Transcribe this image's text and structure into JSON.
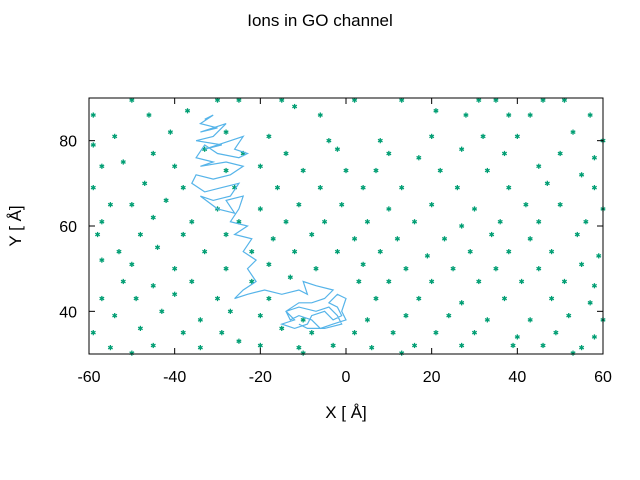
{
  "chart_data": {
    "type": "scatter",
    "title": "Ions in GO channel",
    "xlabel": "X [ Å]",
    "ylabel": "Y [ Å]",
    "xlim": [
      -60,
      60
    ],
    "ylim": [
      30,
      90
    ],
    "xticks": [
      -60,
      -40,
      -20,
      0,
      20,
      40,
      60
    ],
    "yticks": [
      40,
      60,
      80
    ],
    "grid": false,
    "colors": {
      "points": "#009e73",
      "trajectory": "#56b4e9",
      "axes": "#000000"
    },
    "series": [
      {
        "type": "scatter",
        "points": [
          [
            -50,
            89.5
          ],
          [
            -30,
            89.5
          ],
          [
            -25,
            89.5
          ],
          [
            -15,
            89.5
          ],
          [
            2,
            89.5
          ],
          [
            13,
            89.5
          ],
          [
            31,
            89.5
          ],
          [
            35,
            89.5
          ],
          [
            46,
            89.5
          ],
          [
            51,
            89.5
          ],
          [
            -59,
            86
          ],
          [
            -46,
            86
          ],
          [
            -37,
            87
          ],
          [
            -12,
            88
          ],
          [
            -6,
            86
          ],
          [
            21,
            87
          ],
          [
            28,
            86
          ],
          [
            38,
            86
          ],
          [
            43,
            86
          ],
          [
            57,
            86
          ],
          [
            -54,
            81
          ],
          [
            -41,
            82
          ],
          [
            -28,
            82
          ],
          [
            -18,
            81
          ],
          [
            -4,
            80
          ],
          [
            8,
            80
          ],
          [
            20,
            81
          ],
          [
            32,
            81
          ],
          [
            40,
            81
          ],
          [
            53,
            82
          ],
          [
            60,
            80
          ],
          [
            -59,
            79
          ],
          [
            -45,
            77
          ],
          [
            -33,
            78
          ],
          [
            -24,
            77
          ],
          [
            -14,
            77
          ],
          [
            -2,
            78
          ],
          [
            10,
            77
          ],
          [
            17,
            76
          ],
          [
            27,
            78
          ],
          [
            37,
            77
          ],
          [
            50,
            77
          ],
          [
            58,
            76
          ],
          [
            -57,
            74
          ],
          [
            -52,
            75
          ],
          [
            -40,
            74
          ],
          [
            -28,
            73
          ],
          [
            -20,
            74
          ],
          [
            -10,
            73
          ],
          [
            0,
            73
          ],
          [
            7,
            73
          ],
          [
            22,
            73
          ],
          [
            33,
            73
          ],
          [
            45,
            74
          ],
          [
            55,
            72
          ],
          [
            -59,
            69
          ],
          [
            -47,
            70
          ],
          [
            -38,
            69
          ],
          [
            -26,
            69
          ],
          [
            -16,
            69
          ],
          [
            -6,
            69
          ],
          [
            4,
            69
          ],
          [
            13,
            69
          ],
          [
            26,
            69
          ],
          [
            38,
            69
          ],
          [
            47,
            70
          ],
          [
            58,
            69
          ],
          [
            -55,
            65
          ],
          [
            -50,
            65
          ],
          [
            -42,
            66
          ],
          [
            -30,
            64
          ],
          [
            -20,
            64
          ],
          [
            -11,
            65
          ],
          [
            -1,
            65
          ],
          [
            10,
            64
          ],
          [
            20,
            65
          ],
          [
            30,
            64
          ],
          [
            42,
            65
          ],
          [
            50,
            65
          ],
          [
            60,
            64
          ],
          [
            -57,
            61
          ],
          [
            -45,
            62
          ],
          [
            -36,
            61
          ],
          [
            -25,
            61
          ],
          [
            -14,
            61
          ],
          [
            -5,
            61
          ],
          [
            5,
            61
          ],
          [
            16,
            61
          ],
          [
            27,
            60
          ],
          [
            36,
            61
          ],
          [
            45,
            61
          ],
          [
            56,
            61
          ],
          [
            -58,
            58
          ],
          [
            -48,
            58
          ],
          [
            -38,
            58
          ],
          [
            -28,
            58
          ],
          [
            -17,
            57
          ],
          [
            -8,
            58
          ],
          [
            2,
            57
          ],
          [
            12,
            57
          ],
          [
            23,
            57
          ],
          [
            34,
            58
          ],
          [
            43,
            57
          ],
          [
            54,
            58
          ],
          [
            -53,
            54
          ],
          [
            -44,
            55
          ],
          [
            -33,
            54
          ],
          [
            -22,
            54
          ],
          [
            -12,
            54
          ],
          [
            -2,
            54
          ],
          [
            8,
            54
          ],
          [
            19,
            53
          ],
          [
            29,
            54
          ],
          [
            38,
            54
          ],
          [
            48,
            54
          ],
          [
            59,
            53
          ],
          [
            -57,
            52
          ],
          [
            -50,
            51
          ],
          [
            -40,
            50
          ],
          [
            -28,
            50
          ],
          [
            -18,
            51
          ],
          [
            -7,
            50
          ],
          [
            4,
            51
          ],
          [
            14,
            50
          ],
          [
            25,
            50
          ],
          [
            35,
            50
          ],
          [
            45,
            50
          ],
          [
            55,
            51
          ],
          [
            -52,
            47
          ],
          [
            -45,
            46
          ],
          [
            -36,
            47
          ],
          [
            -22,
            47
          ],
          [
            -13,
            48
          ],
          [
            3,
            47
          ],
          [
            10,
            47
          ],
          [
            20,
            47
          ],
          [
            31,
            47
          ],
          [
            41,
            47
          ],
          [
            51,
            47
          ],
          [
            58,
            46
          ],
          [
            -57,
            43
          ],
          [
            -49,
            43
          ],
          [
            -40,
            44
          ],
          [
            -30,
            43
          ],
          [
            -18,
            43
          ],
          [
            7,
            43
          ],
          [
            17,
            43
          ],
          [
            27,
            42
          ],
          [
            37,
            43
          ],
          [
            48,
            43
          ],
          [
            57,
            42
          ],
          [
            -54,
            39
          ],
          [
            -43,
            40
          ],
          [
            -34,
            38
          ],
          [
            -27,
            40
          ],
          [
            -20,
            39
          ],
          [
            -10,
            38
          ],
          [
            5,
            38
          ],
          [
            14,
            39
          ],
          [
            24,
            39
          ],
          [
            33,
            38
          ],
          [
            43,
            38
          ],
          [
            52,
            39
          ],
          [
            60,
            38
          ],
          [
            -59,
            35
          ],
          [
            -48,
            36
          ],
          [
            -38,
            35
          ],
          [
            -29,
            35
          ],
          [
            -15,
            36
          ],
          [
            -8,
            35
          ],
          [
            2,
            35
          ],
          [
            11,
            35
          ],
          [
            21,
            35
          ],
          [
            30,
            35
          ],
          [
            40,
            34
          ],
          [
            49,
            35
          ],
          [
            58,
            34
          ],
          [
            -55,
            31.5
          ],
          [
            -45,
            32
          ],
          [
            -34,
            31.5
          ],
          [
            -25,
            33
          ],
          [
            -20,
            32
          ],
          [
            -11,
            31.5
          ],
          [
            -3,
            32
          ],
          [
            6,
            31.5
          ],
          [
            16,
            32
          ],
          [
            27,
            32
          ],
          [
            39,
            32
          ],
          [
            46,
            32
          ],
          [
            55,
            31.5
          ],
          [
            -50,
            30.2
          ],
          [
            -10,
            30.2
          ],
          [
            13,
            30.2
          ],
          [
            53,
            30.2
          ]
        ]
      },
      {
        "type": "line",
        "points": [
          [
            -33,
            85
          ],
          [
            -31,
            86
          ],
          [
            -34,
            84
          ],
          [
            -30,
            83
          ],
          [
            -34,
            82
          ],
          [
            -28,
            84
          ],
          [
            -31,
            81
          ],
          [
            -35,
            80
          ],
          [
            -29,
            79
          ],
          [
            -33,
            78
          ],
          [
            -27,
            80
          ],
          [
            -24,
            81
          ],
          [
            -26,
            78
          ],
          [
            -23,
            77
          ],
          [
            -25,
            76
          ],
          [
            -30,
            77
          ],
          [
            -33,
            79
          ],
          [
            -35,
            76
          ],
          [
            -31,
            75
          ],
          [
            -34,
            74
          ],
          [
            -28,
            75
          ],
          [
            -24,
            74
          ],
          [
            -27,
            72
          ],
          [
            -31,
            71
          ],
          [
            -35,
            72
          ],
          [
            -36,
            70
          ],
          [
            -33,
            68
          ],
          [
            -29,
            69
          ],
          [
            -25,
            70
          ],
          [
            -27,
            67
          ],
          [
            -31,
            66
          ],
          [
            -34,
            67
          ],
          [
            -30,
            64
          ],
          [
            -26,
            63
          ],
          [
            -28,
            66
          ],
          [
            -24,
            67
          ],
          [
            -25,
            64
          ],
          [
            -27,
            61
          ],
          [
            -23,
            60
          ],
          [
            -26,
            58
          ],
          [
            -22,
            57
          ],
          [
            -24,
            54
          ],
          [
            -21,
            52
          ],
          [
            -23,
            50
          ],
          [
            -21,
            47
          ],
          [
            -24,
            45
          ],
          [
            -26,
            43
          ],
          [
            -23,
            44
          ],
          [
            -19,
            45
          ],
          [
            -15,
            44
          ],
          [
            -11,
            45
          ],
          [
            -9,
            44
          ],
          [
            -10,
            47
          ],
          [
            -7,
            46
          ],
          [
            -3,
            45
          ],
          [
            -5,
            43
          ],
          [
            -8,
            42
          ],
          [
            -11,
            42
          ],
          [
            -14,
            40
          ],
          [
            -12,
            38
          ],
          [
            -15,
            37
          ],
          [
            -12,
            36
          ],
          [
            -9,
            37
          ],
          [
            -8,
            39
          ],
          [
            -5,
            40
          ],
          [
            -3,
            38
          ],
          [
            -1,
            39
          ],
          [
            -2,
            41
          ],
          [
            -4,
            42
          ],
          [
            -2,
            44
          ],
          [
            0,
            43
          ],
          [
            -1,
            40
          ],
          [
            0,
            38
          ],
          [
            -3,
            37
          ],
          [
            -6,
            36
          ],
          [
            -8,
            38
          ],
          [
            -11,
            39
          ],
          [
            -13,
            38
          ],
          [
            -14,
            40
          ],
          [
            -11,
            41
          ],
          [
            -7,
            40
          ],
          [
            -4,
            41
          ],
          [
            -2,
            39
          ],
          [
            -1,
            37
          ],
          [
            -5,
            36
          ],
          [
            -9,
            36
          ],
          [
            -11,
            37
          ]
        ]
      }
    ]
  }
}
